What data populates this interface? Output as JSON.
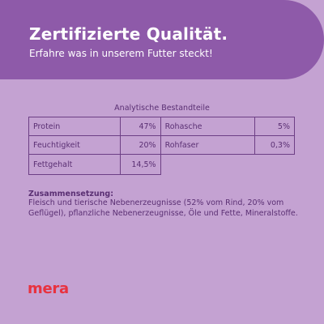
{
  "header": {
    "title": "Zertifizierte Qualität.",
    "subtitle": "Erfahre was in unserem Futter steckt!"
  },
  "analysis": {
    "title": "Analytische Bestandteile",
    "rows": [
      {
        "left_label": "Protein",
        "left_value": "47%",
        "right_label": "Rohasche",
        "right_value": "5%"
      },
      {
        "left_label": "Feuchtigkeit",
        "left_value": "20%",
        "right_label": "Rohfaser",
        "right_value": "0,3%"
      },
      {
        "left_label": "Fettgehalt",
        "left_value": "14,5%"
      }
    ]
  },
  "composition": {
    "label": "Zusammensetzung:",
    "text": "Fleisch und tierische Nebenerzeugnisse (52% vom Rind, 20% vom Geflügel), pflanzliche Nebenerzeugnisse, Öle und Fette, Mineralstoffe."
  },
  "brand": {
    "logo_text": "mera",
    "logo_color": "#e8323f"
  },
  "colors": {
    "background": "#c4a2d2",
    "banner": "#8e5aa9",
    "text": "#5a2f73"
  }
}
